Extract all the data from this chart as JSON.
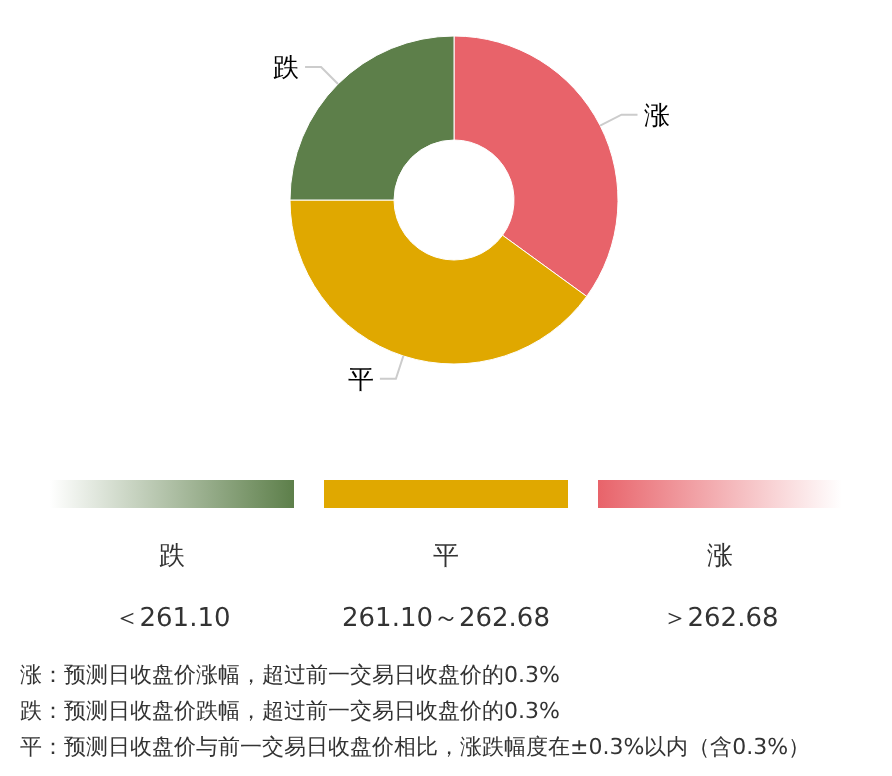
{
  "chart_data": {
    "type": "donut",
    "categories": [
      "涨",
      "平",
      "跌"
    ],
    "values": [
      35,
      40,
      25
    ],
    "colors": [
      "#e8636a",
      "#e0a800",
      "#5d7f4a"
    ],
    "annotations": [
      "＞262.68",
      "261.10～262.68",
      "＜261.10",
      "涨：预测日收盘价涨幅，超过前一交易日收盘价的0.3%",
      "跌：预测日收盘价跌幅，超过前一交易日收盘价的0.3%",
      "平：预测日收盘价与前一交易日收盘价相比，涨跌幅度在±0.3%以内（含0.3%）"
    ]
  }
}
